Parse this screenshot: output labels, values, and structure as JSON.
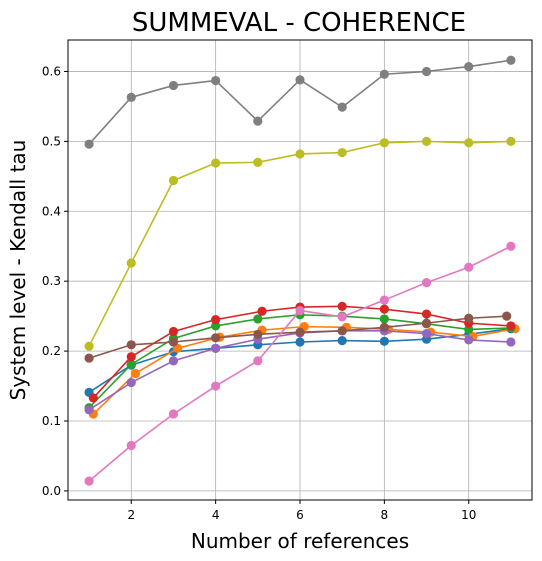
{
  "chart_data": {
    "type": "line",
    "title": "SUMMEVAL - COHERENCE",
    "xlabel": "Number of references",
    "ylabel": "System level - Kendall tau",
    "xlim": [
      0.5,
      11.5
    ],
    "ylim": [
      -0.013,
      0.645
    ],
    "xticks": [
      2,
      4,
      6,
      8,
      10
    ],
    "yticks": [
      0.0,
      0.1,
      0.2,
      0.3,
      0.4,
      0.5,
      0.6
    ],
    "grid": true,
    "legend": "none",
    "series": [
      {
        "color": "#1f77b4",
        "x": [
          1,
          2,
          3,
          4,
          5,
          6,
          7,
          8,
          9,
          10,
          11
        ],
        "values": [
          0.141,
          0.18,
          0.199,
          0.204,
          0.209,
          0.213,
          0.215,
          0.214,
          0.217,
          0.224,
          0.232
        ]
      },
      {
        "color": "#ff7f0e",
        "x": [
          1.1,
          2.1,
          3.1,
          4.1,
          5.1,
          6.1,
          7.1,
          8.1,
          9.1,
          10.1,
          11.1
        ],
        "values": [
          0.11,
          0.168,
          0.204,
          0.22,
          0.23,
          0.235,
          0.234,
          0.231,
          0.227,
          0.221,
          0.232
        ]
      },
      {
        "color": "#2ca02c",
        "x": [
          1,
          2,
          3,
          4,
          5,
          6,
          7,
          8,
          9,
          10,
          11
        ],
        "values": [
          0.119,
          0.181,
          0.218,
          0.236,
          0.246,
          0.252,
          0.25,
          0.246,
          0.239,
          0.231,
          0.233
        ]
      },
      {
        "color": "#d62728",
        "x": [
          1.1,
          2,
          3,
          4,
          5.1,
          6,
          7,
          8,
          9,
          10,
          11
        ],
        "values": [
          0.133,
          0.192,
          0.228,
          0.245,
          0.257,
          0.263,
          0.264,
          0.26,
          0.253,
          0.24,
          0.236
        ]
      },
      {
        "color": "#9467bd",
        "x": [
          1,
          2,
          3,
          4,
          5,
          6,
          7,
          8,
          9,
          10,
          11
        ],
        "values": [
          0.116,
          0.155,
          0.186,
          0.204,
          0.217,
          0.226,
          0.229,
          0.229,
          0.225,
          0.216,
          0.213
        ]
      },
      {
        "color": "#8c564b",
        "x": [
          1,
          2,
          3,
          4,
          5,
          6,
          7,
          8,
          9,
          10,
          10.9
        ],
        "values": [
          0.19,
          0.209,
          0.213,
          0.219,
          0.224,
          0.227,
          0.229,
          0.234,
          0.24,
          0.247,
          0.25
        ]
      },
      {
        "color": "#e377c2",
        "x": [
          1,
          2,
          3,
          4,
          5,
          6,
          7,
          8,
          9,
          10,
          11
        ],
        "values": [
          0.014,
          0.065,
          0.11,
          0.15,
          0.186,
          0.258,
          0.249,
          0.273,
          0.298,
          0.32,
          0.35
        ]
      },
      {
        "color": "#7f7f7f",
        "x": [
          1,
          2,
          3,
          4,
          5,
          6,
          7,
          8,
          9,
          10,
          11
        ],
        "values": [
          0.496,
          0.563,
          0.58,
          0.587,
          0.529,
          0.588,
          0.549,
          0.596,
          0.6,
          0.607,
          0.616
        ]
      },
      {
        "color": "#bcbd22",
        "x": [
          1,
          2,
          3,
          4,
          5,
          6,
          7,
          8,
          9,
          10,
          11
        ],
        "values": [
          0.207,
          0.326,
          0.444,
          0.469,
          0.47,
          0.482,
          0.484,
          0.498,
          0.5,
          0.498,
          0.5
        ]
      }
    ]
  }
}
